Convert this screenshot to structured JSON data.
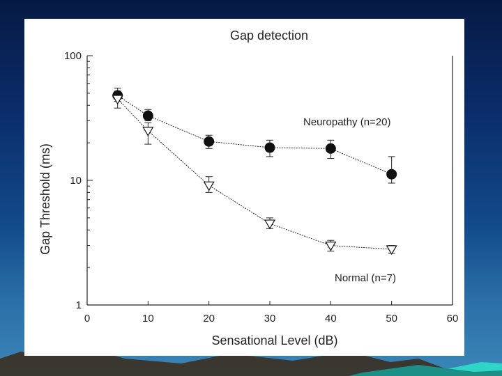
{
  "colors": {
    "background_top": "#061a44",
    "background_bottom": "#3b86b8",
    "panel": "#ffffff",
    "ink": "#222222",
    "teal_accent": "#2fd6c8"
  },
  "chart_data": {
    "type": "line",
    "title": "Gap detection",
    "xlabel": "Sensational Level (dB)",
    "ylabel": "Gap Threshold (ms)",
    "xlim": [
      0,
      60
    ],
    "ylim": [
      1,
      100
    ],
    "yscale": "log",
    "x_ticks": [
      "0",
      "10",
      "20",
      "30",
      "40",
      "50",
      "60"
    ],
    "y_ticks": [
      "1",
      "10",
      "100"
    ],
    "series": [
      {
        "name": "Neuropathy (n=20)",
        "marker": "filled-circle",
        "x": [
          5,
          10,
          20,
          30,
          40,
          50
        ],
        "y": [
          48,
          33,
          20.5,
          18.3,
          18,
          11.2
        ],
        "err_upper": [
          55,
          37,
          23,
          21,
          21,
          15.5
        ],
        "err_lower": [
          43,
          30,
          18,
          15.5,
          15,
          9.5
        ]
      },
      {
        "name": "Normal (n=7)",
        "marker": "open-triangle-down",
        "x": [
          5,
          10,
          20,
          30,
          40,
          50
        ],
        "y": [
          45,
          25,
          9.1,
          4.5,
          3.0,
          2.8
        ],
        "err_upper": [
          52,
          29,
          10.7,
          5.0,
          3.3,
          3.0
        ],
        "err_lower": [
          38,
          19.5,
          8.0,
          4.1,
          2.7,
          2.6
        ]
      }
    ],
    "annotations": [
      "Neuropathy (n=20)",
      "Normal (n=7)"
    ],
    "grid": false
  }
}
